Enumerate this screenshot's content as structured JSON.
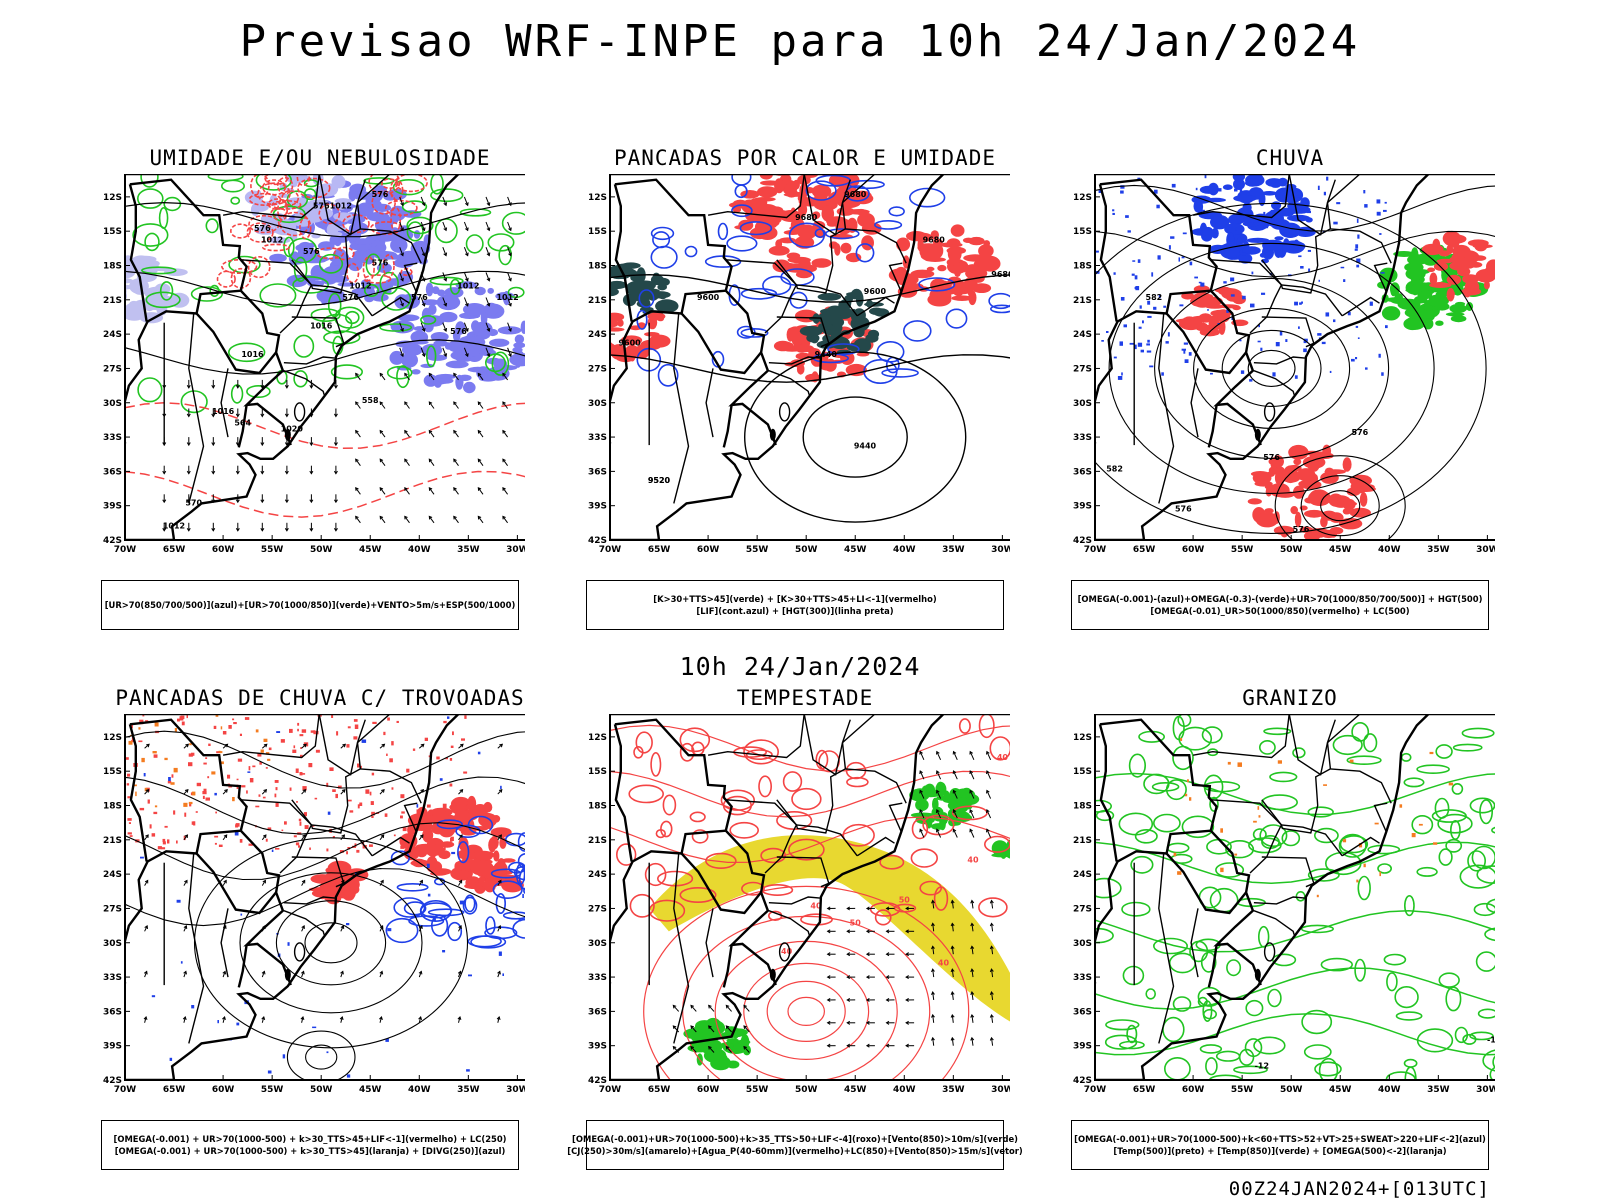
{
  "main_title": "Previsao WRF-INPE  para 10h 24/Jan/2024",
  "mid_label": "10h 24/Jan/2024",
  "footer": "00Z24JAN2024+[013UTC]",
  "lat_ticks": [
    "12S",
    "15S",
    "18S",
    "21S",
    "24S",
    "27S",
    "30S",
    "33S",
    "36S",
    "39S",
    "42S"
  ],
  "lon_ticks": [
    "70W",
    "65W",
    "60W",
    "55W",
    "50W",
    "45W",
    "40W",
    "35W",
    "30W"
  ],
  "colors": {
    "humidity_blue": "#7b7bf0",
    "humidity_green": "#22c422",
    "storm_red": "#f44444",
    "storm_dark": "#24484a",
    "convergence_blue": "#1f3fe8",
    "jet_yellow": "#e8d830",
    "hail_orange": "#f47c20"
  },
  "panels": [
    {
      "title": "UMIDADE E/OU NEBULOSIDADE",
      "legend": [
        "[UR>70(850/700/500)](azul)+[UR>70(1000/850)](verde)+VENTO>5m/s+ESP(500/1000)"
      ],
      "contour_labels": [
        "1012",
        "1012",
        "1012",
        "1012",
        "1012",
        "1016",
        "1016",
        "1016",
        "1020",
        "1012",
        "576",
        "576",
        "576",
        "576",
        "576",
        "576",
        "576",
        "576",
        "558",
        "564",
        "570"
      ]
    },
    {
      "title": "PANCADAS POR CALOR E UMIDADE",
      "legend": [
        "[K>30+TTS>45](verde) + [K>30+TTS>45+LI<-1](vermelho)",
        "[LIF](cont.azul) + [HGT(300)](linha preta)"
      ],
      "contour_labels": [
        "9680",
        "9680",
        "9680",
        "9680",
        "9600",
        "9600",
        "9600",
        "9520",
        "9440",
        "9440",
        "9520"
      ]
    },
    {
      "title": "CHUVA",
      "legend": [
        "[OMEGA(-0.001)-(azul)+OMEGA(-0.3)-(verde)+UR>70(1000/850/700/500)] + HGT(500)",
        "[OMEGA(-0.01)_UR>50(1000/850)(vermelho) + LC(500)"
      ],
      "contour_labels": [
        "582",
        "576",
        "576",
        "576",
        "576",
        "582"
      ]
    },
    {
      "title": "PANCADAS DE CHUVA C/ TROVOADAS",
      "legend": [
        "[OMEGA(-0.001) + UR>70(1000-500) + k>30_TTS>45+LIF<-1](vermelho) + LC(250)",
        "[OMEGA(-0.001) + UR>70(1000-500) + k>30_TTS>45](laranja) + [DIVG(250)](azul)"
      ],
      "contour_labels": []
    },
    {
      "title": "TEMPESTADE",
      "legend": [
        "[OMEGA(-0.001)+UR>70(1000-500)+k>35_TTS>50+LIF<-4](roxo)+[Vento(850)>10m/s](verde)",
        "[CJ(250)>30m/s](amarelo)+[Agua_P(40-60mm)](vermelho)+LC(850)+[Vento(850)>15m/s](vetor)"
      ],
      "contour_labels": [
        "40",
        "40",
        "50",
        "40",
        "50",
        "40",
        "40"
      ]
    },
    {
      "title": "GRANIZO",
      "legend": [
        "[OMEGA(-0.001)+UR>70(1000-500)+k<60+TTS>52+VT>25+SWEAT>220+LIF<-2](azul)",
        "[Temp(500)](preto) + [Temp(850)](verde) + [OMEGA(500)<-2](laranja)"
      ],
      "contour_labels": [
        "-12",
        "-12"
      ]
    }
  ]
}
